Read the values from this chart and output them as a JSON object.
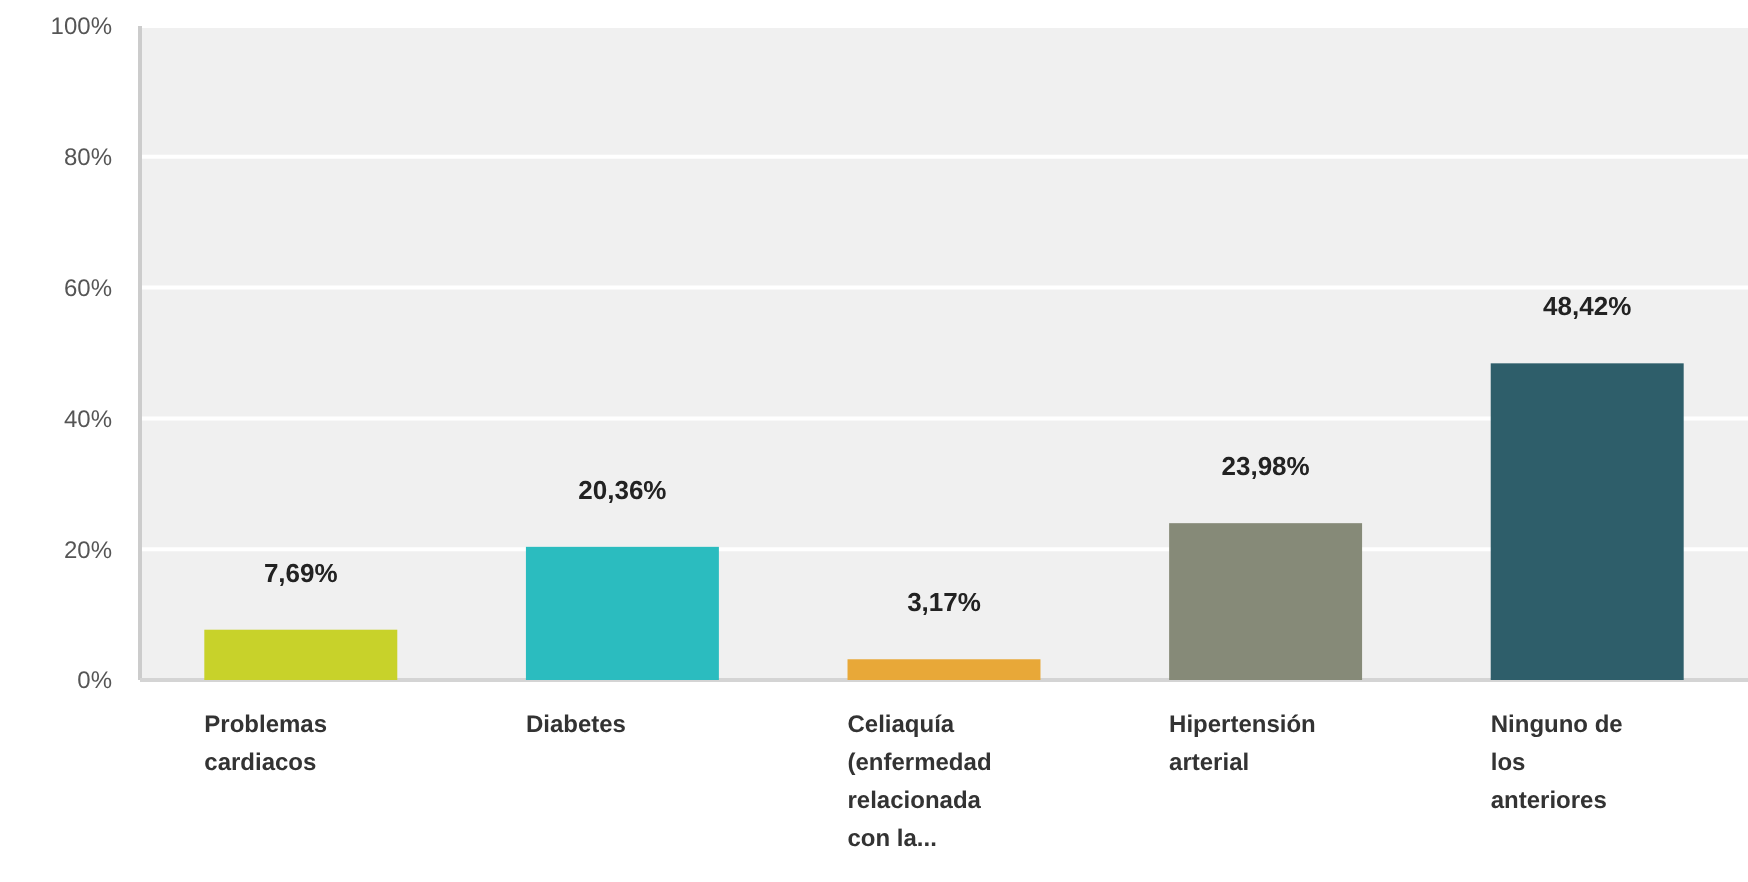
{
  "chart_data": {
    "type": "bar",
    "categories": [
      "Problemas cardiacos",
      "Diabetes",
      "Celiaquía (enfermedad relacionada con la...",
      "Hipertensión arterial",
      "Ninguno de los anteriores"
    ],
    "values": [
      7.69,
      20.36,
      3.17,
      23.98,
      48.42
    ],
    "colors": [
      "#c8d22a",
      "#2bbcbf",
      "#e8a838",
      "#868a78",
      "#2e5e6a"
    ],
    "value_labels": [
      "7,69%",
      "20,36%",
      "3,17%",
      "23,98%",
      "48,42%"
    ],
    "ylim": [
      0,
      100
    ],
    "yticks": [
      {
        "value": 0,
        "label": "0%"
      },
      {
        "value": 20,
        "label": "20%"
      },
      {
        "value": 40,
        "label": "40%"
      },
      {
        "value": 60,
        "label": "60%"
      },
      {
        "value": 80,
        "label": "80%"
      },
      {
        "value": 100,
        "label": "100%"
      }
    ],
    "grid": "y"
  }
}
